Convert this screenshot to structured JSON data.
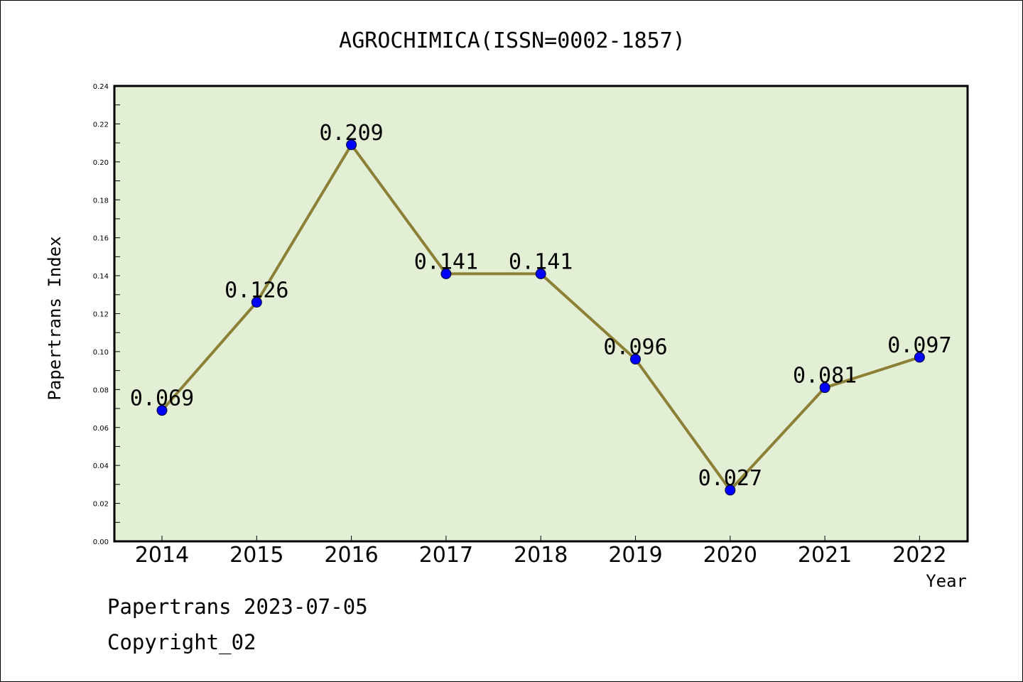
{
  "chart_data": {
    "type": "line",
    "title": "AGROCHIMICA(ISSN=0002-1857)",
    "xlabel": "Year",
    "ylabel": "Papertrans Index",
    "categories": [
      "2014",
      "2015",
      "2016",
      "2017",
      "2018",
      "2019",
      "2020",
      "2021",
      "2022"
    ],
    "series": [
      {
        "values": [
          0.069,
          0.126,
          0.209,
          0.141,
          0.141,
          0.096,
          0.027,
          0.081,
          0.097
        ],
        "labels": [
          "0.069",
          "0.126",
          "0.209",
          "0.141",
          "0.141",
          "0.096",
          "0.027",
          "0.081",
          "0.097"
        ],
        "line_color": "#8b8035",
        "marker_color": "#0000ff"
      }
    ],
    "ylim": [
      0,
      0.24
    ],
    "yticks": [
      "0.00",
      "0.02",
      "0.04",
      "0.06",
      "0.08",
      "0.10",
      "0.12",
      "0.14",
      "0.16",
      "0.18",
      "0.20",
      "0.22",
      "0.24"
    ],
    "grid": false,
    "legend": "none",
    "plot_background": "#e2efd5"
  },
  "footer": {
    "line1": "Papertrans 2023-07-05",
    "line2": "Copyright_02"
  }
}
